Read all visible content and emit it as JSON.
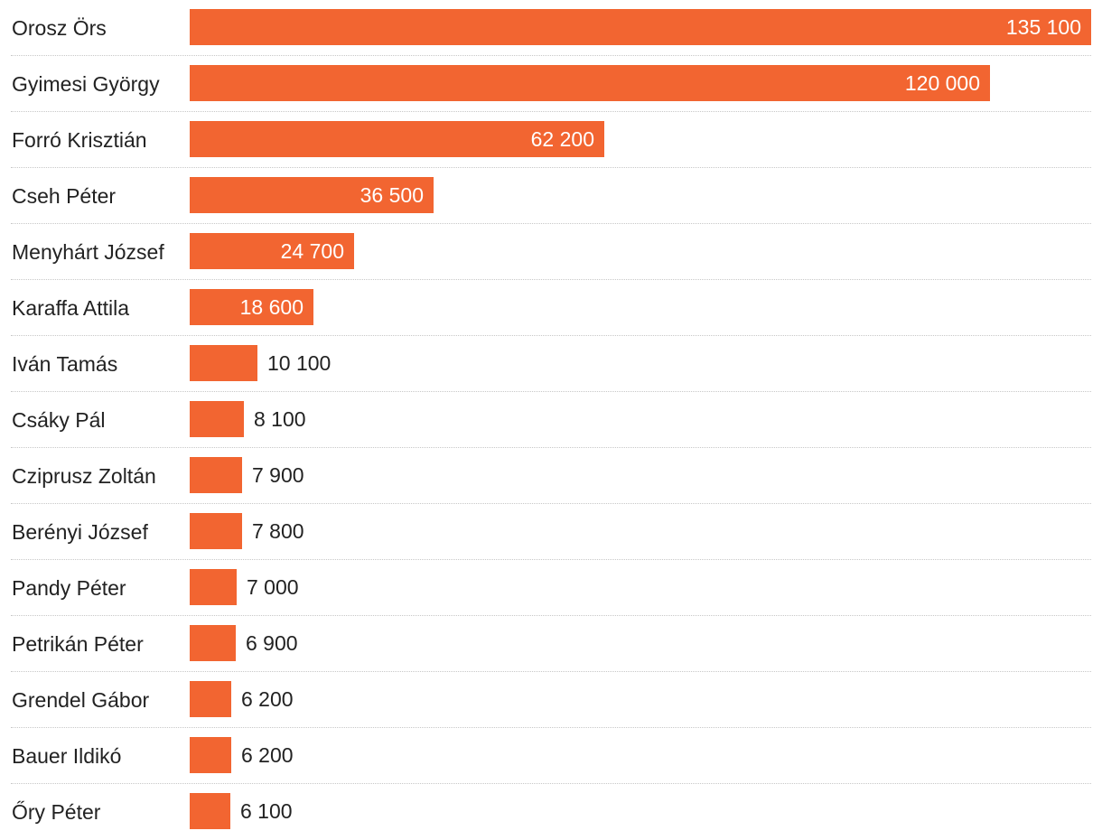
{
  "chart_data": {
    "type": "bar",
    "orientation": "horizontal",
    "title": "",
    "xlabel": "",
    "ylabel": "",
    "xlim": [
      0,
      135100
    ],
    "grid": false,
    "bar_color": "#f26531",
    "categories": [
      "Orosz Örs",
      "Gyimesi György",
      "Forró Krisztián",
      "Cseh Péter",
      "Menyhárt József",
      "Karaffa Attila",
      "Iván Tamás",
      "Csáky Pál",
      "Cziprusz Zoltán",
      "Berényi József",
      "Pandy Péter",
      "Petrikán Péter",
      "Grendel Gábor",
      "Bauer Ildikó",
      "Őry Péter"
    ],
    "values": [
      135100,
      120000,
      62200,
      36500,
      24700,
      18600,
      10100,
      8100,
      7900,
      7800,
      7000,
      6900,
      6200,
      6200,
      6100
    ],
    "value_labels": [
      "135 100",
      "120 000",
      "62 200",
      "36 500",
      "24 700",
      "18 600",
      "10 100",
      "8 100",
      "7 900",
      "7 800",
      "7 000",
      "6 900",
      "6 200",
      "6 200",
      "6 100"
    ]
  }
}
